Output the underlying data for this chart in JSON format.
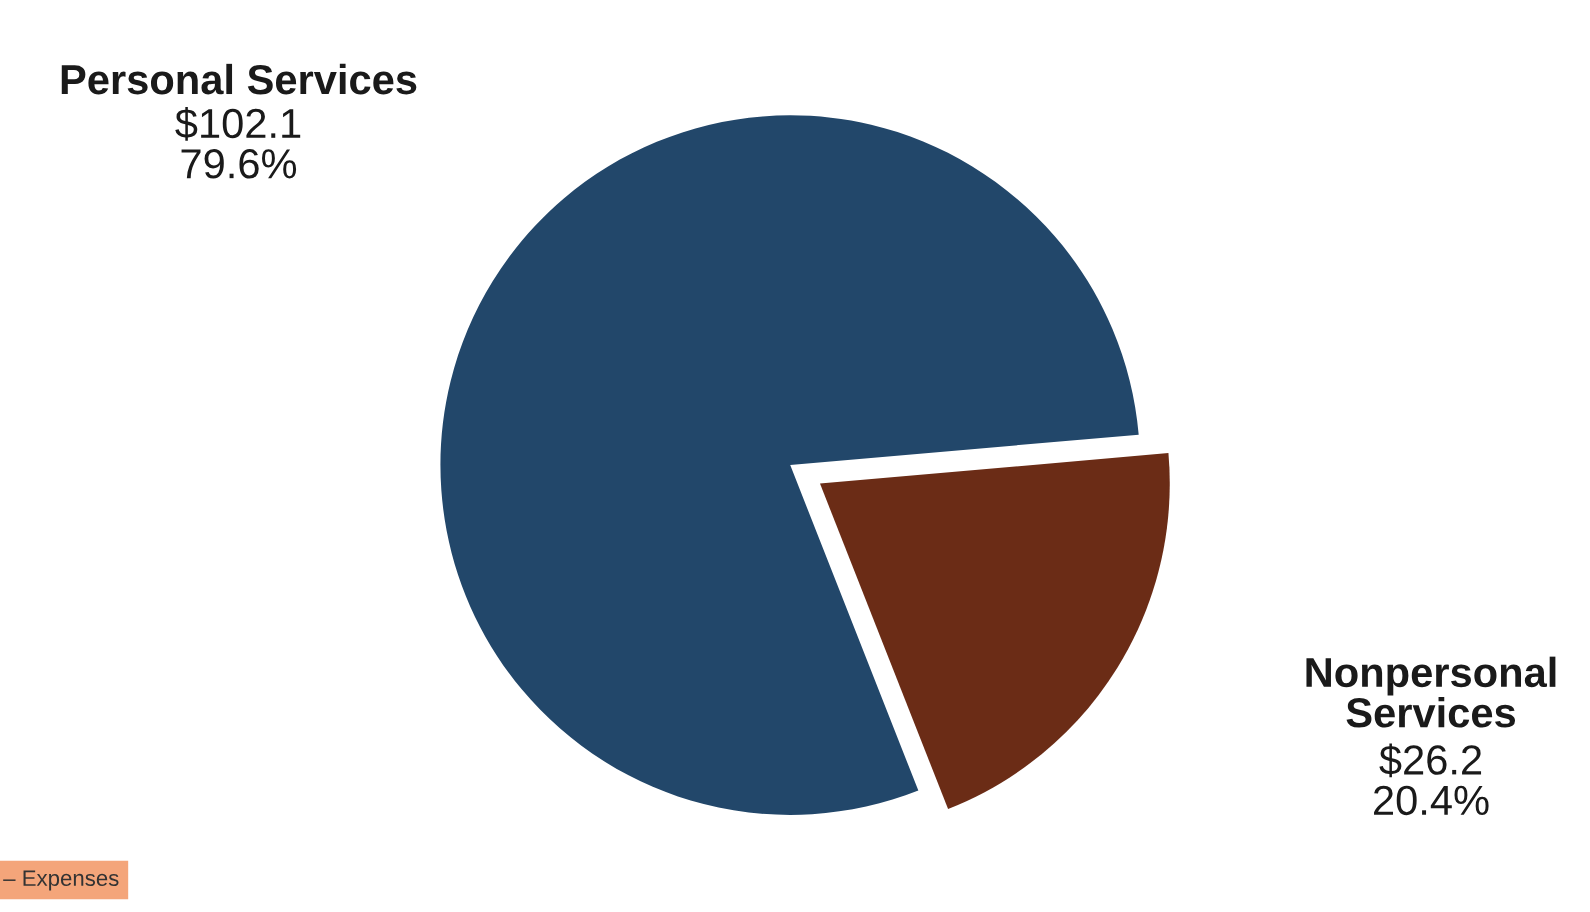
{
  "chart_data": {
    "type": "pie",
    "categories": [
      "Personal Services",
      "Nonpersonal\nServices"
    ],
    "values": [
      102.1,
      26.2
    ],
    "value_labels": [
      "$102.1\n79.6%",
      "$26.2\n20.4%"
    ],
    "colors": [
      "#22476a",
      "#6b2c16"
    ],
    "annotations": [
      "– Expenses"
    ]
  }
}
